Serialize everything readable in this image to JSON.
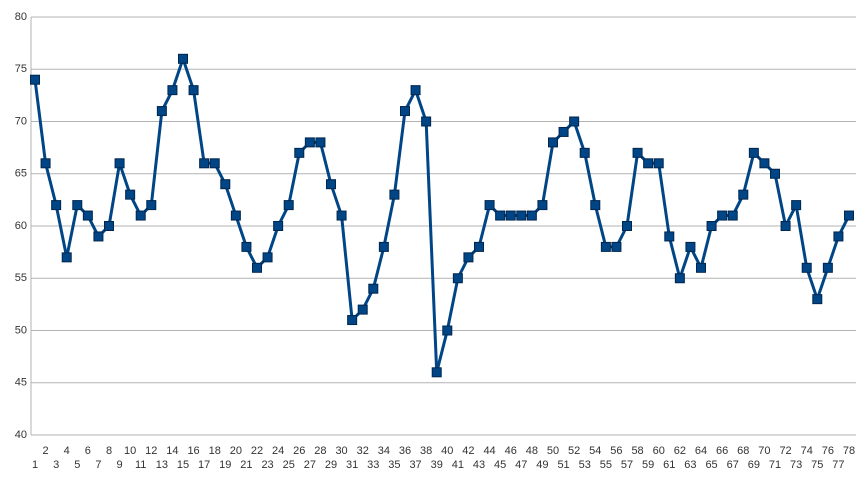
{
  "chart_data": {
    "type": "line",
    "categories": [
      "1",
      "2",
      "3",
      "4",
      "5",
      "6",
      "7",
      "8",
      "9",
      "10",
      "11",
      "12",
      "13",
      "14",
      "15",
      "16",
      "17",
      "18",
      "19",
      "20",
      "21",
      "22",
      "23",
      "24",
      "25",
      "26",
      "27",
      "28",
      "29",
      "30",
      "31",
      "32",
      "33",
      "34",
      "35",
      "36",
      "37",
      "38",
      "39",
      "40",
      "41",
      "42",
      "43",
      "44",
      "45",
      "46",
      "47",
      "48",
      "49",
      "50",
      "51",
      "52",
      "53",
      "54",
      "55",
      "56",
      "57",
      "58",
      "59",
      "60",
      "61",
      "62",
      "63",
      "64",
      "65",
      "66",
      "67",
      "68",
      "69",
      "70",
      "71",
      "72",
      "73",
      "74",
      "75",
      "76",
      "77",
      "78"
    ],
    "values": [
      74,
      66,
      62,
      57,
      62,
      61,
      59,
      60,
      66,
      63,
      61,
      62,
      71,
      73,
      76,
      73,
      66,
      66,
      64,
      61,
      58,
      56,
      57,
      60,
      62,
      67,
      68,
      68,
      64,
      61,
      51,
      52,
      54,
      58,
      63,
      71,
      73,
      70,
      46,
      50,
      55,
      57,
      58,
      62,
      61,
      61,
      61,
      61,
      62,
      68,
      69,
      70,
      67,
      62,
      58,
      58,
      60,
      67,
      66,
      66,
      59,
      55,
      58,
      56,
      60,
      61,
      61,
      63,
      67,
      66,
      65,
      60,
      62,
      56,
      53,
      56,
      59,
      61
    ],
    "color": "#004586",
    "ylim": [
      40,
      80
    ],
    "yticks": [
      40,
      45,
      50,
      55,
      60,
      65,
      70,
      75,
      80
    ],
    "grid": true
  }
}
